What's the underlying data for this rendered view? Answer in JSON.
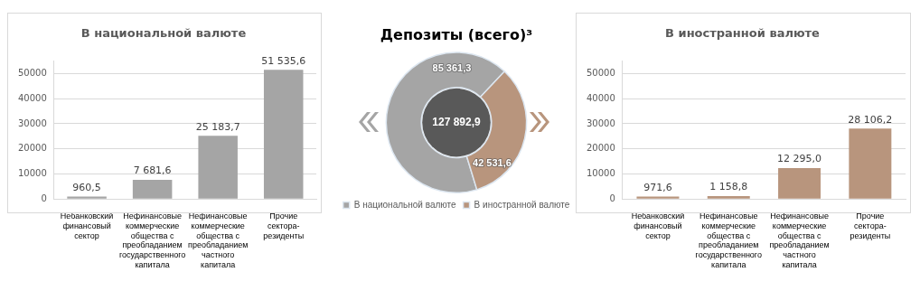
{
  "chart_data": [
    {
      "type": "bar",
      "title": "В национальной валюте",
      "categories": [
        "Небанковский финансовый сектор",
        "Нефинансовые коммерческие общества с преобладанием государственного капитала",
        "Нефинансовые коммерческие общества с преобладанием частного капитала",
        "Прочие сектора-резиденты"
      ],
      "series": [
        {
          "color": "#a5a5a5",
          "values": [
            960.5,
            7681.6,
            25183.7,
            51535.6
          ],
          "value_labels": [
            "960,5",
            "7 681,6",
            "25 183,7",
            "51 535,6"
          ]
        }
      ],
      "ylim": [
        0,
        55000
      ],
      "yticks": [
        0,
        10000,
        20000,
        30000,
        40000,
        50000
      ],
      "grid": "y"
    },
    {
      "type": "donut",
      "title": "Депозиты (всего)³",
      "categories": [
        "В национальной валюте",
        "В иностранной валюте"
      ],
      "values": [
        85361.3,
        42531.6
      ],
      "colors": [
        "#a5a5a5",
        "#b8957d"
      ],
      "value_labels": [
        "85 361,3",
        "42 531,6"
      ],
      "annotations": [
        "127 892,9"
      ],
      "legend": "bottom"
    },
    {
      "type": "bar",
      "title": "В иностранной валюте",
      "categories": [
        "Небанковский финансовый сектор",
        "Нефинансовые коммерческие общества с преобладанием государственного капитала",
        "Нефинансовые коммерческие общества с преобладанием частного капитала",
        "Прочие сектора-резиденты"
      ],
      "series": [
        {
          "color": "#b8957d",
          "values": [
            971.6,
            1158.8,
            12295.0,
            28106.2
          ],
          "value_labels": [
            "971,6",
            "1 158,8",
            "12 295,0",
            "28 106,2"
          ]
        }
      ],
      "ylim": [
        0,
        55000
      ],
      "yticks": [
        0,
        10000,
        20000,
        30000,
        40000,
        50000
      ],
      "grid": "y"
    }
  ]
}
